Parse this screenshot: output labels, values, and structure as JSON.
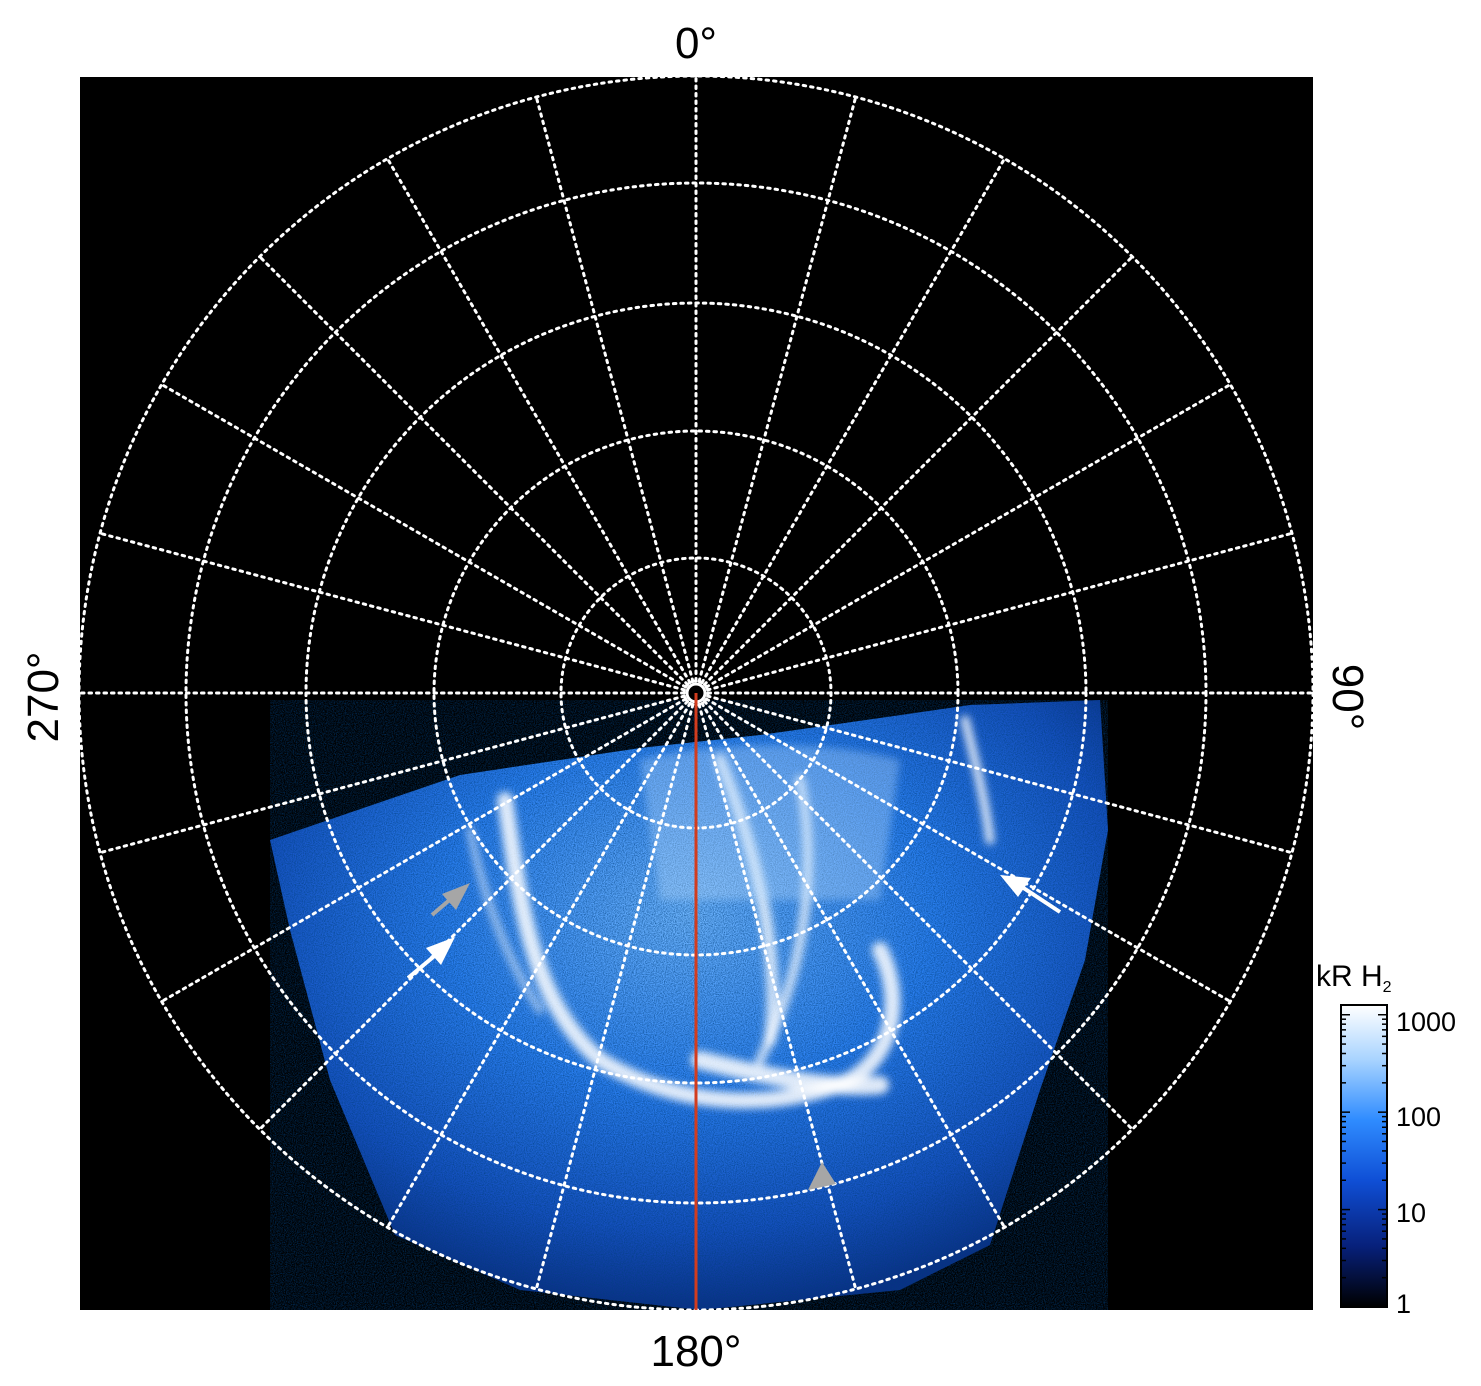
{
  "labels": {
    "top": "0°",
    "bottom": "180°",
    "left": "270°",
    "right": "90°"
  },
  "colorbar": {
    "title_main": "kR H",
    "title_sub": "2",
    "ticks": [
      "1000",
      "100",
      "10",
      "1"
    ],
    "colors": [
      "#ffffff",
      "#9fd0ff",
      "#2f8cff",
      "#0f4fd6",
      "#071f7a",
      "#000000"
    ]
  },
  "colors": {
    "background": "#000000",
    "grid": "#ffffff",
    "meridian": "#d23c1e",
    "arrow_white": "#ffffff",
    "arrow_gray": "#a6a6a6"
  },
  "arrows": [
    {
      "name": "gray-arrow-upper-left",
      "color": "gray"
    },
    {
      "name": "white-arrow-left",
      "color": "white"
    },
    {
      "name": "white-arrow-right",
      "color": "white"
    },
    {
      "name": "gray-arrow-bottom",
      "color": "gray"
    }
  ]
}
